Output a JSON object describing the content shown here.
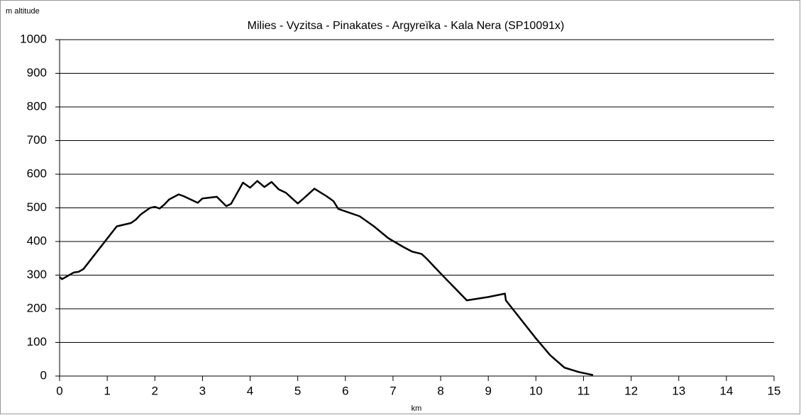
{
  "chart_data": {
    "type": "line",
    "title": "Milies - Vyzitsa - Pinakates - Argyreïka - Kala Nera (SP10091x)",
    "y_label": "m altitude",
    "x_label": "km",
    "x": [
      0,
      0.05,
      0.1,
      0.3,
      0.4,
      0.5,
      1.2,
      1.5,
      1.6,
      1.7,
      1.8,
      1.9,
      2.0,
      2.1,
      2.2,
      2.3,
      2.5,
      2.6,
      2.9,
      3.0,
      3.3,
      3.5,
      3.6,
      3.85,
      4.0,
      4.15,
      4.3,
      4.45,
      4.6,
      4.75,
      5.0,
      5.1,
      5.35,
      5.6,
      5.75,
      5.85,
      6.3,
      6.6,
      6.9,
      7.2,
      7.4,
      7.6,
      7.7,
      8.0,
      8.55,
      9.0,
      9.35,
      9.37,
      10.0,
      10.3,
      10.6,
      10.9,
      11.2
    ],
    "series": [
      {
        "name": "altitude",
        "color": "#000000",
        "values": [
          295,
          288,
          292,
          308,
          310,
          318,
          445,
          455,
          465,
          480,
          490,
          500,
          503,
          498,
          510,
          525,
          540,
          535,
          515,
          528,
          533,
          505,
          512,
          575,
          560,
          580,
          562,
          577,
          555,
          545,
          513,
          525,
          557,
          535,
          520,
          497,
          475,
          445,
          410,
          385,
          370,
          363,
          350,
          305,
          225,
          235,
          245,
          225,
          112,
          62,
          25,
          12,
          3
        ]
      }
    ],
    "xlim": [
      0,
      15
    ],
    "xticks": [
      0,
      1,
      2,
      3,
      4,
      5,
      6,
      7,
      8,
      9,
      10,
      11,
      12,
      13,
      14,
      15
    ],
    "ylim": [
      0,
      1000
    ],
    "yticks": [
      0,
      100,
      200,
      300,
      400,
      500,
      600,
      700,
      800,
      900,
      1000
    ],
    "grid": true
  }
}
